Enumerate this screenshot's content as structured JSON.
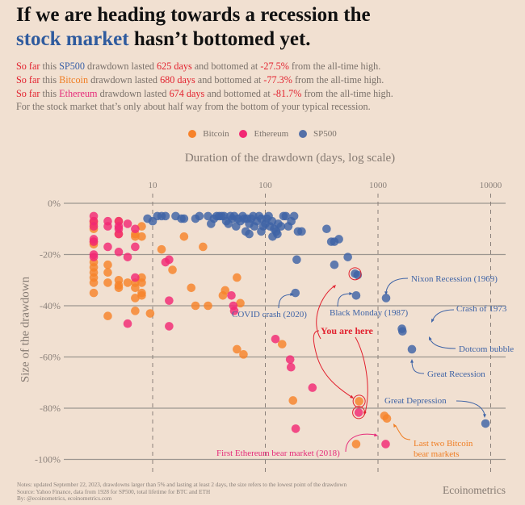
{
  "title": {
    "line1": "If we are heading towards a recession the",
    "highlight": "stock market",
    "line2_rest": " hasn’t bottomed yet."
  },
  "subtitle": [
    {
      "prefix": "So far",
      "t1": " this ",
      "asset": "SP500",
      "asset_class": "blue",
      "t2": " drawdown lasted ",
      "days": "625 days",
      "t3": " and bottomed at ",
      "pct": "-27.5%",
      "t4": " from the all-time high."
    },
    {
      "prefix": "So far",
      "t1": " this ",
      "asset": "Bitcoin",
      "asset_class": "orange",
      "t2": " drawdown lasted ",
      "days": "680 days",
      "t3": " and bottomed at ",
      "pct": "-77.3%",
      "t4": " from the all-time high."
    },
    {
      "prefix": "So far",
      "t1": " this ",
      "asset": "Ethereum",
      "asset_class": "pink",
      "t2": " drawdown lasted ",
      "days": "674 days",
      "t3": " and bottomed at ",
      "pct": "-81.7%",
      "t4": " from the all-time high."
    }
  ],
  "subtitle_last": "For the stock market that’s only about half way from the bottom of your typical recession.",
  "colors": {
    "Bitcoin": "#f7822a",
    "Ethereum": "#f22874",
    "SP500": "#3e63a6",
    "grid": "#9c9690",
    "annot_blue": "#3e63a6",
    "annot_red": "#e2222f",
    "annot_orange": "#f07d22",
    "annot_pink": "#e52a79"
  },
  "notes": [
    "Notes: updated September 22, 2023, drawdowns larger than 5% and lasting at least 2 days, the size refers to the lowest point of the drawdown",
    "Source: Yahoo Finance, data from 1928 for SP500, total lifetime for BTC and ETH",
    "By: @ecoinometrics, ecoinometrics.com"
  ],
  "brand": "Ecoinometrics",
  "chart_data": {
    "type": "scatter",
    "title": "Duration of the drawdown (days, log scale)",
    "xlabel": "Duration of the drawdown (days, log scale)",
    "ylabel": "Size of the drawdown",
    "xscale": "log",
    "xlim": [
      1.9,
      12000
    ],
    "ylim": [
      -100,
      0
    ],
    "xticks": [
      {
        "v": 10,
        "label": "10"
      },
      {
        "v": 100,
        "label": "100"
      },
      {
        "v": 1000,
        "label": "1000"
      },
      {
        "v": 10000,
        "label": "10000"
      }
    ],
    "yticks": [
      {
        "v": 0,
        "label": "0%"
      },
      {
        "v": -20,
        "label": "-20%"
      },
      {
        "v": -40,
        "label": "-40%"
      },
      {
        "v": -60,
        "label": "-60%"
      },
      {
        "v": -80,
        "label": "-80%"
      },
      {
        "v": -100,
        "label": "-100%"
      }
    ],
    "legend": {
      "position": "top-center",
      "items": [
        "Bitcoin",
        "Ethereum",
        "SP500"
      ]
    },
    "series": [
      {
        "name": "Bitcoin",
        "points": [
          [
            3,
            -7
          ],
          [
            3,
            -8
          ],
          [
            3,
            -10
          ],
          [
            3,
            -15
          ],
          [
            3,
            -16
          ],
          [
            3,
            -23
          ],
          [
            3,
            -25
          ],
          [
            3,
            -27
          ],
          [
            3,
            -29
          ],
          [
            3,
            -31
          ],
          [
            3,
            -35
          ],
          [
            4,
            -24
          ],
          [
            4,
            -27
          ],
          [
            4,
            -31
          ],
          [
            4,
            -44
          ],
          [
            5,
            -7
          ],
          [
            5,
            -12
          ],
          [
            5,
            -30
          ],
          [
            5,
            -32
          ],
          [
            5,
            -33
          ],
          [
            6,
            -31
          ],
          [
            7,
            -12
          ],
          [
            7,
            -13
          ],
          [
            7,
            -31
          ],
          [
            7,
            -33
          ],
          [
            7,
            -37
          ],
          [
            7,
            -42
          ],
          [
            8,
            -9
          ],
          [
            8,
            -13
          ],
          [
            8,
            -29
          ],
          [
            8,
            -31
          ],
          [
            8,
            -35
          ],
          [
            8,
            -36
          ],
          [
            9.5,
            -43
          ],
          [
            12,
            -18
          ],
          [
            15,
            -26
          ],
          [
            19,
            -13
          ],
          [
            22,
            -33
          ],
          [
            24,
            -40
          ],
          [
            28,
            -17
          ],
          [
            31,
            -40
          ],
          [
            42,
            -36
          ],
          [
            44,
            -34
          ],
          [
            56,
            -29
          ],
          [
            56,
            -57
          ],
          [
            60,
            -39
          ],
          [
            64,
            -59
          ],
          [
            141,
            -55
          ],
          [
            176,
            -77
          ],
          [
            680,
            -77.3
          ],
          [
            1140,
            -83
          ],
          [
            1200,
            -84
          ],
          [
            640,
            -94
          ]
        ]
      },
      {
        "name": "Ethereum",
        "points": [
          [
            3,
            -5
          ],
          [
            3,
            -7
          ],
          [
            3,
            -9
          ],
          [
            3,
            -14
          ],
          [
            3,
            -15
          ],
          [
            3,
            -20
          ],
          [
            3,
            -21
          ],
          [
            4,
            -7
          ],
          [
            4,
            -9
          ],
          [
            4,
            -17
          ],
          [
            5,
            -7
          ],
          [
            5,
            -9
          ],
          [
            5,
            -10
          ],
          [
            5,
            -12
          ],
          [
            5,
            -19
          ],
          [
            6,
            -8
          ],
          [
            6,
            -21
          ],
          [
            6,
            -47
          ],
          [
            7,
            -10
          ],
          [
            7,
            -17
          ],
          [
            7,
            -29
          ],
          [
            13,
            -23
          ],
          [
            14,
            -22
          ],
          [
            14,
            -38
          ],
          [
            14,
            -48
          ],
          [
            50,
            -36
          ],
          [
            52,
            -40
          ],
          [
            53,
            -42
          ],
          [
            123,
            -53
          ],
          [
            166,
            -61
          ],
          [
            169,
            -64
          ],
          [
            262,
            -72
          ],
          [
            186,
            -88
          ],
          [
            674,
            -81.7
          ],
          [
            1170,
            -94
          ]
        ]
      },
      {
        "name": "SP500",
        "points": [
          [
            9,
            -6
          ],
          [
            10,
            -7
          ],
          [
            11,
            -5
          ],
          [
            12,
            -5
          ],
          [
            13,
            -5
          ],
          [
            16,
            -5
          ],
          [
            18,
            -6
          ],
          [
            19,
            -6
          ],
          [
            24,
            -6
          ],
          [
            26,
            -5
          ],
          [
            31,
            -5
          ],
          [
            33,
            -8
          ],
          [
            35,
            -6
          ],
          [
            37,
            -5
          ],
          [
            39,
            -5
          ],
          [
            41,
            -5
          ],
          [
            43,
            -5
          ],
          [
            45,
            -7
          ],
          [
            47,
            -8
          ],
          [
            49,
            -5
          ],
          [
            51,
            -6
          ],
          [
            53,
            -5
          ],
          [
            55,
            -9
          ],
          [
            57,
            -6
          ],
          [
            60,
            -7
          ],
          [
            63,
            -5
          ],
          [
            65,
            -6
          ],
          [
            67,
            -11
          ],
          [
            69,
            -6
          ],
          [
            72,
            -8
          ],
          [
            75,
            -6
          ],
          [
            78,
            -5
          ],
          [
            80,
            -9
          ],
          [
            84,
            -7
          ],
          [
            88,
            -5
          ],
          [
            92,
            -6
          ],
          [
            96,
            -9
          ],
          [
            100,
            -8
          ],
          [
            103,
            -6
          ],
          [
            107,
            -5
          ],
          [
            110,
            -9
          ],
          [
            115,
            -7
          ],
          [
            120,
            -10
          ],
          [
            125,
            -11
          ],
          [
            130,
            -8
          ],
          [
            138,
            -9
          ],
          [
            145,
            -5
          ],
          [
            152,
            -5
          ],
          [
            160,
            -9
          ],
          [
            170,
            -7
          ],
          [
            180,
            -5
          ],
          [
            195,
            -11
          ],
          [
            210,
            -11
          ],
          [
            72,
            -12
          ],
          [
            92,
            -11
          ],
          [
            128,
            -12
          ],
          [
            116,
            -13
          ],
          [
            190,
            -22
          ],
          [
            350,
            -10
          ],
          [
            385,
            -15
          ],
          [
            410,
            -15
          ],
          [
            450,
            -14
          ],
          [
            410,
            -24
          ],
          [
            540,
            -21
          ],
          [
            625,
            -27.5
          ],
          [
            660,
            -28
          ],
          [
            640,
            -36
          ],
          [
            185,
            -35
          ],
          [
            1180,
            -37
          ],
          [
            1630,
            -49
          ],
          [
            1650,
            -50
          ],
          [
            2000,
            -57
          ],
          [
            9000,
            -86
          ]
        ]
      }
    ],
    "annotations": [
      {
        "label": "COVID crash (2020)",
        "color": "annot_blue"
      },
      {
        "label": "Black Monday (1987)",
        "color": "annot_blue"
      },
      {
        "label": "Nixon Recession (1969)",
        "color": "annot_blue"
      },
      {
        "label": "Crash of 1973",
        "color": "annot_blue"
      },
      {
        "label": "Dotcom bubble",
        "color": "annot_blue"
      },
      {
        "label": "Great Recession",
        "color": "annot_blue"
      },
      {
        "label": "Great Depression",
        "color": "annot_blue"
      },
      {
        "label": "You are here",
        "color": "annot_red"
      },
      {
        "label": "Last two Bitcoin",
        "label2": "bear markets",
        "color": "annot_orange"
      },
      {
        "label": "First Ethereum bear market (2018)",
        "color": "annot_pink"
      }
    ]
  }
}
